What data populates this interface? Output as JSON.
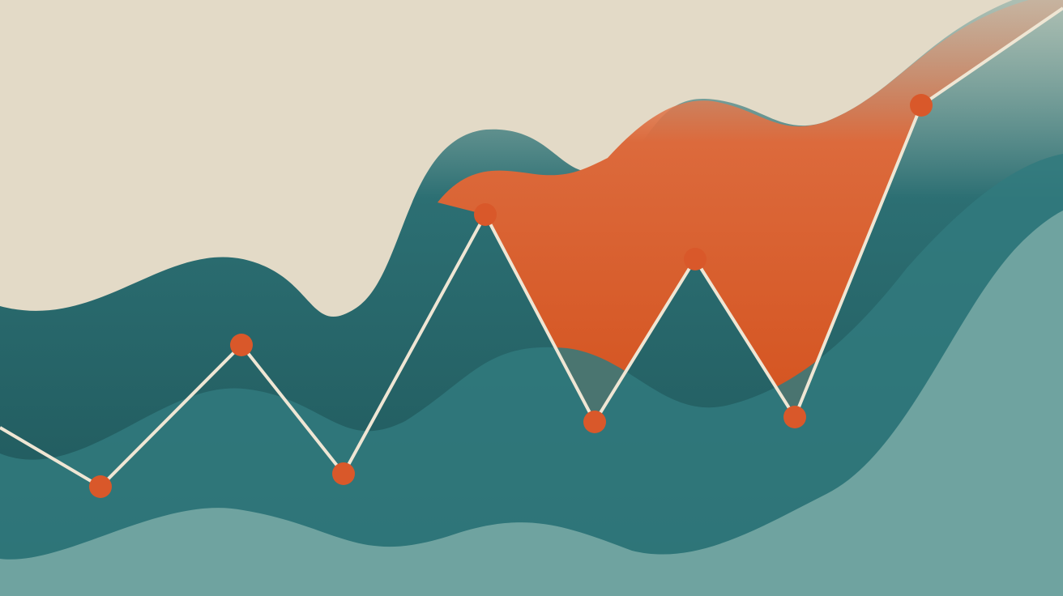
{
  "illustration": {
    "colors": {
      "background": "#e3dac7",
      "teal_dark": "#1f5a5e",
      "teal_mid": "#317a7e",
      "teal_light": "#6fa3a0",
      "orange": "#d9582a",
      "line": "#efe6d4",
      "marker": "#d9582a"
    },
    "marker_count": 8
  }
}
